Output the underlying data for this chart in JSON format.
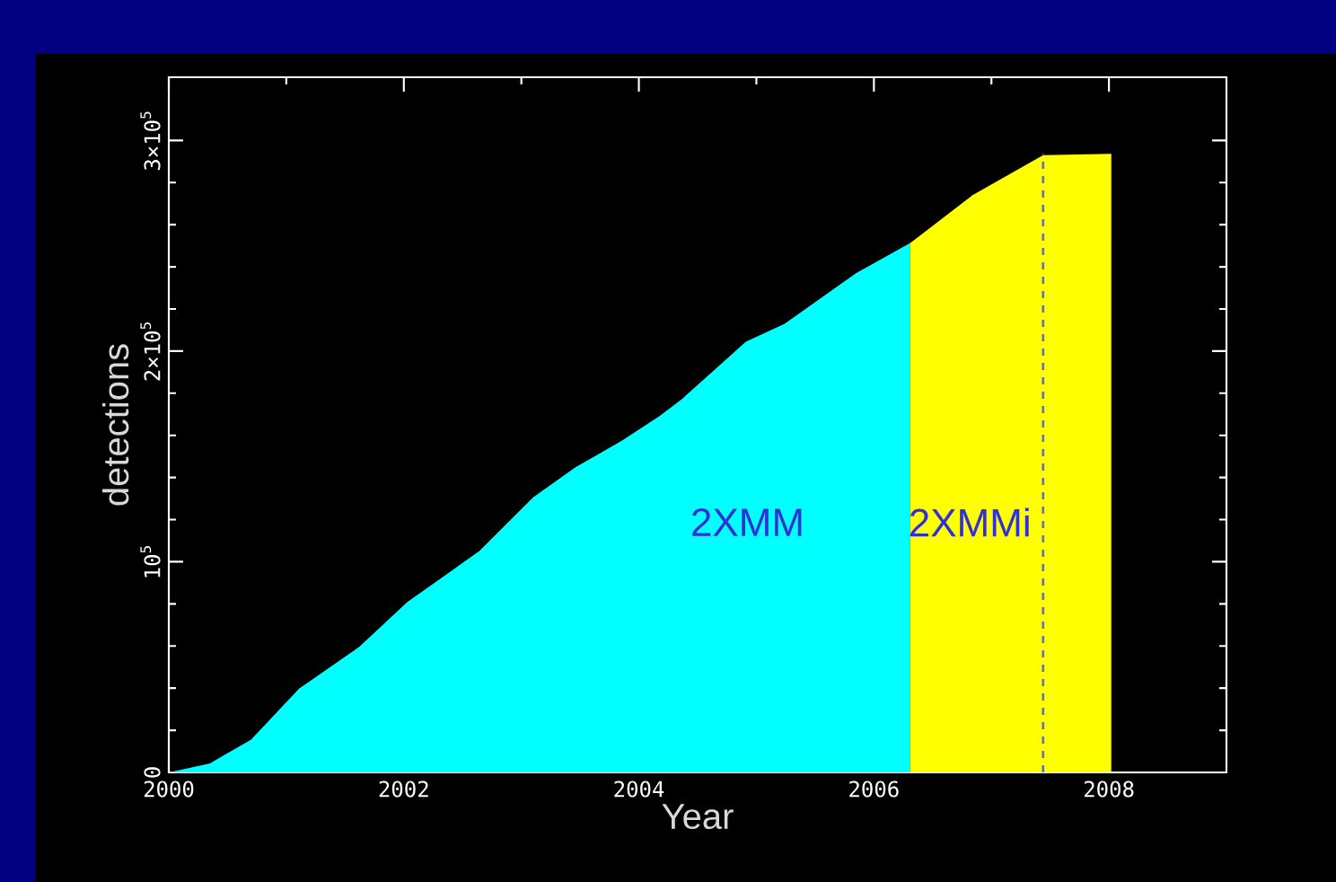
{
  "chart_data": {
    "type": "area",
    "xlabel": "Year",
    "ylabel": "detections",
    "xlim": [
      2000,
      2009
    ],
    "ylim": [
      0,
      330000
    ],
    "xticks": [
      2000,
      2002,
      2004,
      2006,
      2008
    ],
    "yticks": [
      {
        "value": 0,
        "label": "0"
      },
      {
        "value": 100000,
        "label": "10$^{5}$"
      },
      {
        "value": 200000,
        "label": "2×10$^{5}$"
      },
      {
        "value": 300000,
        "label": "3×10$^{5}$"
      }
    ],
    "series": [
      {
        "name": "2XMM",
        "color": "#00ffff",
        "x": [
          2000,
          2000.35,
          2000.7,
          2001.11,
          2001.62,
          2002.03,
          2002.64,
          2003.1,
          2003.46,
          2003.86,
          2004.17,
          2004.37,
          2004.91,
          2005.24,
          2005.85,
          2006.31
        ],
        "values": [
          0,
          4300,
          15600,
          39800,
          59600,
          80900,
          105000,
          130600,
          144800,
          157600,
          168900,
          177400,
          204400,
          213000,
          237000,
          251300
        ]
      },
      {
        "name": "2XMMi",
        "color": "#ffff00",
        "x": [
          2006.31,
          2006.84,
          2007.44,
          2008.02
        ],
        "values": [
          251300,
          274000,
          293000,
          293600
        ]
      }
    ],
    "ref_lines": [
      {
        "axis": "x",
        "value": 2007.44,
        "color": "#7070a0",
        "line_style": "dashed"
      }
    ]
  }
}
